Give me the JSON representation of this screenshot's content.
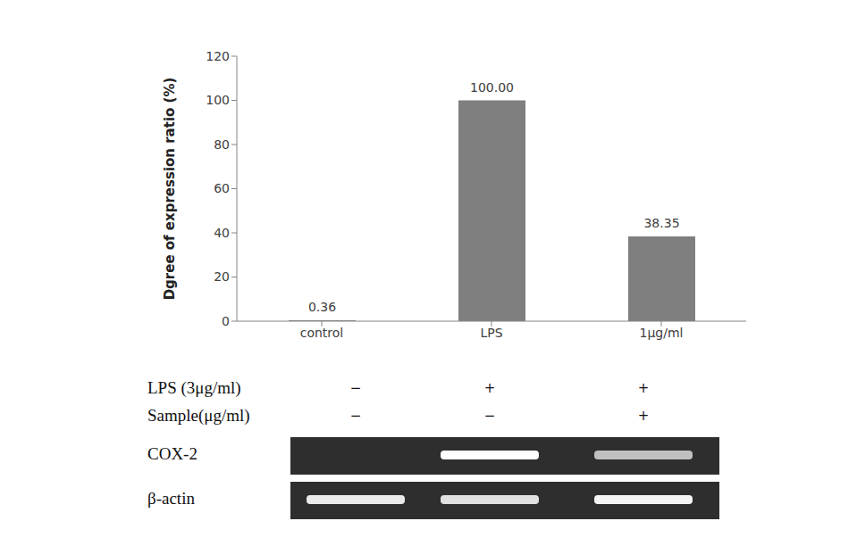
{
  "chart_data": {
    "type": "bar",
    "y_label": "Dgree of expression ratio (%)",
    "categories": [
      "control",
      "LPS",
      "1μg/ml"
    ],
    "values": [
      0.36,
      100.0,
      38.35
    ],
    "value_labels": [
      "0.36",
      "100.00",
      "38.35"
    ],
    "color": "#7f7f7f",
    "ylim": [
      0,
      120
    ],
    "yticks": [
      0,
      20,
      40,
      60,
      80,
      100,
      120
    ],
    "grid": false,
    "data_labels": true,
    "conditions": [
      {
        "label": "LPS (3μg/ml)",
        "marks": [
          "−",
          "+",
          "+"
        ]
      },
      {
        "label": "Sample(μg/ml)",
        "marks": [
          "−",
          "−",
          "+"
        ]
      }
    ],
    "gel": [
      {
        "label": "COX-2",
        "bands": [
          0,
          100,
          70
        ]
      },
      {
        "label": "β-actin",
        "bands": [
          90,
          85,
          95
        ]
      }
    ]
  }
}
